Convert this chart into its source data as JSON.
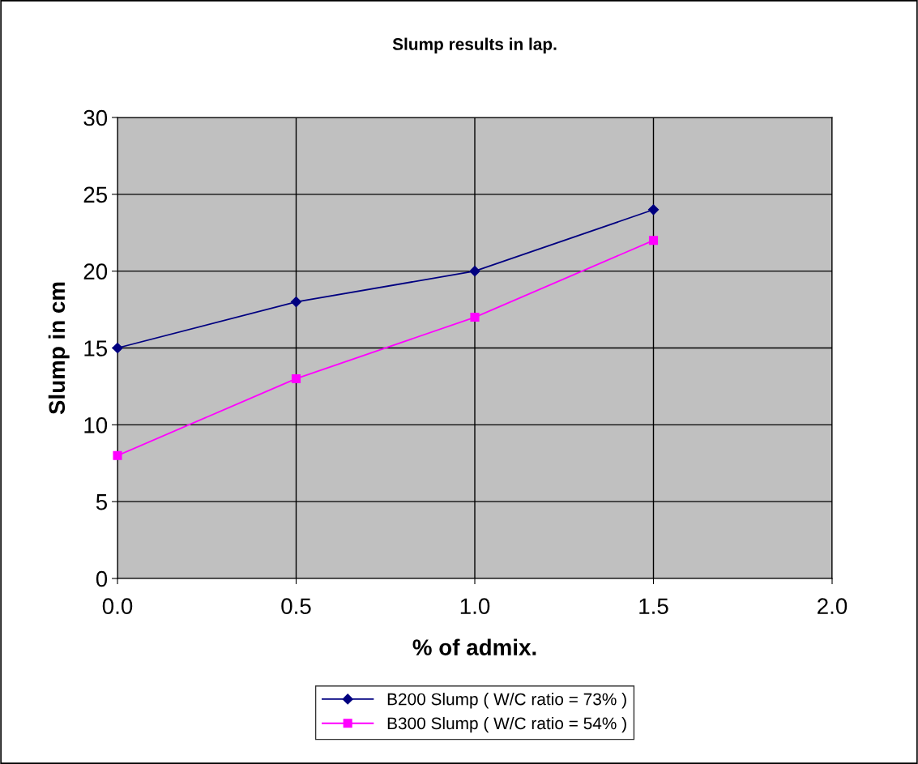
{
  "chart_data": {
    "type": "line",
    "title": "Slump results in lap.",
    "xlabel": "% of admix.",
    "ylabel": "Slump in cm",
    "x": [
      0.0,
      0.5,
      1.0,
      1.5
    ],
    "series": [
      {
        "name": "B200 Slump ( W/C ratio = 73% )",
        "color": "#000080",
        "marker": "diamond",
        "values": [
          15,
          18,
          20,
          24
        ]
      },
      {
        "name": "B300 Slump ( W/C ratio = 54% )",
        "color": "#ff00ff",
        "marker": "square",
        "values": [
          8,
          13,
          17,
          22
        ]
      }
    ],
    "xlim": [
      0,
      2
    ],
    "xticks": [
      {
        "value": 0,
        "label": "0.0"
      },
      {
        "value": 0.5,
        "label": "0.5"
      },
      {
        "value": 1,
        "label": "1.0"
      },
      {
        "value": 1.5,
        "label": "1.5"
      },
      {
        "value": 2,
        "label": "2.0"
      }
    ],
    "ylim": [
      0,
      30
    ],
    "yticks": [
      0,
      5,
      10,
      15,
      20,
      25,
      30
    ],
    "grid": true,
    "legend": "bottom",
    "line_style": "solid"
  }
}
